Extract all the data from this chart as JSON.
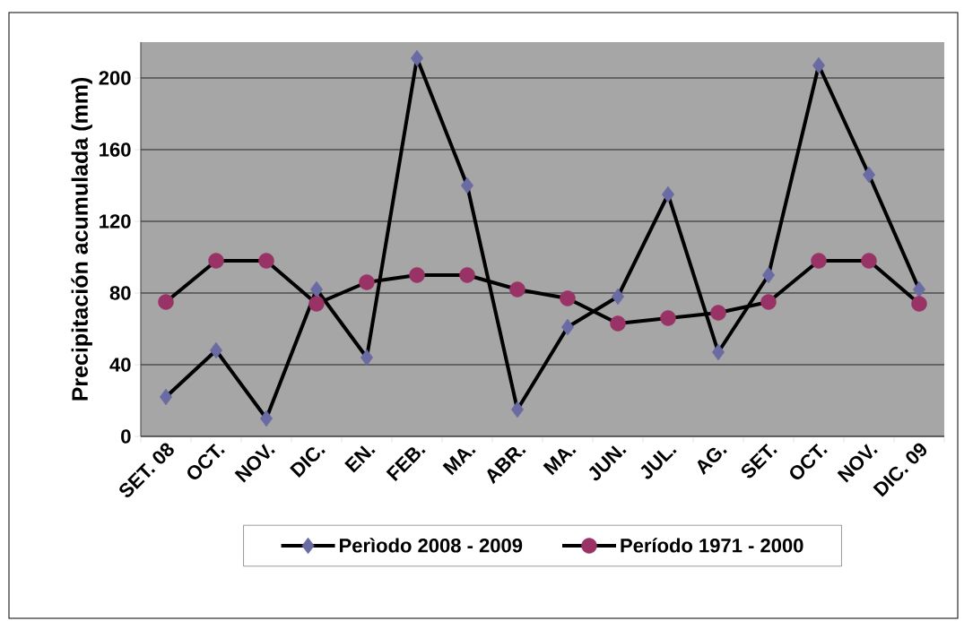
{
  "chart_data": {
    "type": "line",
    "ylabel": "Precipitación acumulada (mm)",
    "categories": [
      "SET. 08",
      "OCT.",
      "NOV.",
      "DIC.",
      "EN.",
      "FEB.",
      "MA.",
      "ABR.",
      "MA.",
      "JUN.",
      "JUL.",
      "AG.",
      "SET.",
      "OCT.",
      "NOV.",
      "DIC. 09"
    ],
    "series": [
      {
        "name": "Perìodo 2008 - 2009",
        "color": "#6b6ba3",
        "marker": "diamond",
        "values": [
          22,
          48,
          10,
          82,
          44,
          211,
          140,
          15,
          61,
          78,
          135,
          47,
          90,
          207,
          146,
          82
        ]
      },
      {
        "name": "Período 1971 - 2000",
        "color": "#993366",
        "marker": "circle",
        "values": [
          75,
          98,
          98,
          74,
          86,
          90,
          90,
          82,
          77,
          63,
          66,
          69,
          75,
          98,
          98,
          74
        ]
      }
    ],
    "ylim": [
      0,
      220
    ],
    "yticks": [
      0,
      40,
      80,
      120,
      160,
      200
    ],
    "grid": "y",
    "legend": "bottom",
    "line_style": "solid"
  }
}
